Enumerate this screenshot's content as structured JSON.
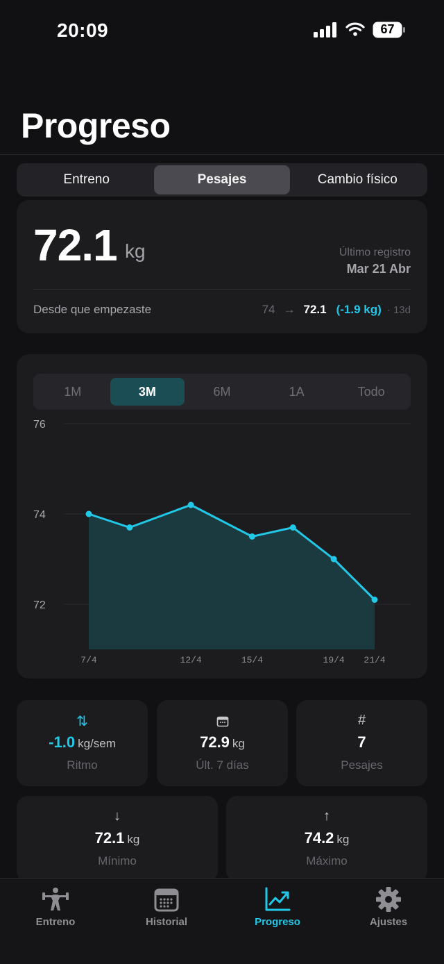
{
  "status_bar": {
    "time": "20:09",
    "battery": "67"
  },
  "header": {
    "title": "Progreso"
  },
  "segments": [
    {
      "label": "Entreno",
      "active": false
    },
    {
      "label": "Pesajes",
      "active": true
    },
    {
      "label": "Cambio físico",
      "active": false
    }
  ],
  "weight_card": {
    "value": "72.1",
    "unit": "kg",
    "last_label": "Último registro",
    "last_date": "Mar 21 Abr",
    "since_label": "Desde que empezaste",
    "since_start": "74",
    "since_arrow": "→",
    "since_current": "72.1",
    "since_diff": "(-1.9 kg)",
    "since_days": "· 13d"
  },
  "range_tabs": [
    {
      "label": "1M",
      "active": false
    },
    {
      "label": "3M",
      "active": true
    },
    {
      "label": "6M",
      "active": false
    },
    {
      "label": "1A",
      "active": false
    },
    {
      "label": "Todo",
      "active": false
    }
  ],
  "chart_data": {
    "type": "area",
    "title": "",
    "xlabel": "",
    "ylabel": "",
    "ylim": [
      71.0,
      76.0
    ],
    "yticks": [
      76,
      74,
      72
    ],
    "xlim": [
      7,
      21
    ],
    "x_tick_values": [
      7,
      12,
      15,
      19,
      21
    ],
    "x_tick_labels": [
      "7/4",
      "12/4",
      "15/4",
      "19/4",
      "21/4"
    ],
    "x": [
      7,
      9,
      12,
      15,
      17,
      19,
      21
    ],
    "y": [
      74.0,
      73.7,
      74.2,
      73.5,
      73.7,
      73.0,
      72.1
    ],
    "line_color": "#22c8e8",
    "fill_color": "#1b3a3f",
    "grid": true
  },
  "stats": {
    "rate": {
      "icon": "up-down-arrows-icon",
      "value": "-1.0",
      "unit": "kg/sem",
      "label": "Ritmo"
    },
    "last7": {
      "icon": "calendar-icon",
      "value": "72.9",
      "unit": "kg",
      "label": "Últ. 7 días"
    },
    "count": {
      "icon": "hash-icon",
      "value": "7",
      "label": "Pesajes"
    },
    "min": {
      "icon": "arrow-down-icon",
      "value": "72.1",
      "unit": "kg",
      "label": "Mínimo"
    },
    "max": {
      "icon": "arrow-up-icon",
      "value": "74.2",
      "unit": "kg",
      "label": "Máximo"
    }
  },
  "tab_bar": [
    {
      "label": "Entreno",
      "icon": "weightlifter-icon",
      "active": false
    },
    {
      "label": "Historial",
      "icon": "calendar-icon",
      "active": false
    },
    {
      "label": "Progreso",
      "icon": "trend-chart-icon",
      "active": true
    },
    {
      "label": "Ajustes",
      "icon": "gear-icon",
      "active": false
    }
  ],
  "colors": {
    "accent": "#22c8e8",
    "background": "#111113",
    "card": "#1c1c1f"
  }
}
